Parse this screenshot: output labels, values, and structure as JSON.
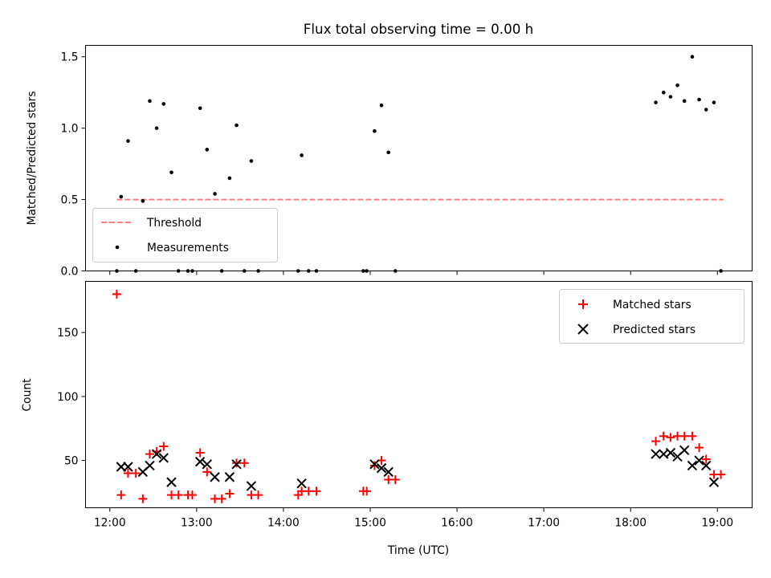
{
  "chart_data": [
    {
      "type": "scatter",
      "title": "Flux total observing time = 0.00 h",
      "xlabel": "",
      "ylabel": "Matched/Predicted stars",
      "xlim": [
        11.72,
        19.4
      ],
      "ylim": [
        0,
        1.58
      ],
      "yticks": [
        0,
        0.5,
        1.0,
        1.5
      ],
      "ytick_labels": [
        "0.0",
        "0.5",
        "1.0",
        "1.5"
      ],
      "grid": false,
      "legend_position": "lower-left",
      "series": [
        {
          "name": "Threshold",
          "kind": "line",
          "color": "#ff7f7f",
          "style": "dashed",
          "x": [
            12.08,
            19.07
          ],
          "y": [
            0.5,
            0.5
          ]
        },
        {
          "name": "Measurements",
          "kind": "scatter",
          "color": "#000000",
          "marker": "dot",
          "x": [
            12.08,
            12.13,
            12.21,
            12.3,
            12.38,
            12.46,
            12.54,
            12.62,
            12.71,
            12.79,
            12.9,
            12.95,
            13.04,
            13.12,
            13.21,
            13.29,
            13.38,
            13.46,
            13.55,
            13.63,
            13.71,
            14.17,
            14.21,
            14.29,
            14.38,
            14.92,
            14.96,
            15.05,
            15.13,
            15.21,
            15.29,
            18.29,
            18.38,
            18.46,
            18.54,
            18.62,
            18.71,
            18.79,
            18.87,
            18.96,
            19.04
          ],
          "y": [
            0.0,
            0.52,
            0.91,
            0.0,
            0.49,
            1.19,
            1.0,
            1.17,
            0.69,
            0.0,
            0.0,
            0.0,
            1.14,
            0.85,
            0.54,
            0.0,
            0.65,
            1.02,
            0.0,
            0.77,
            0.0,
            0.0,
            0.81,
            0.0,
            0.0,
            0.0,
            0.0,
            0.98,
            1.16,
            0.83,
            0.0,
            1.18,
            1.25,
            1.22,
            1.3,
            1.19,
            1.5,
            1.2,
            1.13,
            1.18,
            0.0
          ]
        }
      ]
    },
    {
      "type": "scatter",
      "title": "",
      "xlabel": "Time (UTC)",
      "ylabel": "Count",
      "xlim": [
        11.72,
        19.4
      ],
      "ylim": [
        13,
        190
      ],
      "xticks": [
        12,
        13,
        14,
        15,
        16,
        17,
        18,
        19
      ],
      "xtick_labels": [
        "12:00",
        "13:00",
        "14:00",
        "15:00",
        "16:00",
        "17:00",
        "18:00",
        "19:00"
      ],
      "yticks": [
        50,
        100,
        150
      ],
      "ytick_labels": [
        "50",
        "100",
        "150"
      ],
      "grid": false,
      "legend_position": "top-right",
      "series": [
        {
          "name": "Matched stars",
          "kind": "scatter",
          "color": "#ff0000",
          "marker": "plus",
          "x": [
            12.08,
            12.13,
            12.21,
            12.3,
            12.38,
            12.46,
            12.54,
            12.62,
            12.71,
            12.79,
            12.9,
            12.95,
            13.04,
            13.12,
            13.21,
            13.29,
            13.38,
            13.46,
            13.55,
            13.63,
            13.71,
            14.17,
            14.21,
            14.29,
            14.38,
            14.92,
            14.96,
            15.05,
            15.13,
            15.21,
            15.29,
            18.29,
            18.38,
            18.46,
            18.54,
            18.62,
            18.71,
            18.79,
            18.87,
            18.96,
            19.04
          ],
          "y": [
            180,
            23,
            40,
            40,
            20,
            55,
            57,
            61,
            23,
            23,
            23,
            23,
            56,
            41,
            20,
            20,
            24,
            48,
            48,
            23,
            23,
            23,
            26,
            26,
            26,
            26,
            26,
            46,
            50,
            35,
            35,
            65,
            69,
            68,
            69,
            69,
            69,
            60,
            51,
            39,
            39
          ]
        },
        {
          "name": "Predicted stars",
          "kind": "scatter",
          "color": "#000000",
          "marker": "x",
          "x": [
            12.13,
            12.21,
            12.38,
            12.46,
            12.54,
            12.62,
            12.71,
            13.04,
            13.12,
            13.21,
            13.38,
            13.46,
            13.63,
            14.21,
            15.05,
            15.13,
            15.21,
            18.29,
            18.38,
            18.46,
            18.54,
            18.62,
            18.71,
            18.79,
            18.87,
            18.96
          ],
          "y": [
            45,
            45,
            41,
            46,
            55,
            52,
            33,
            49,
            47,
            37,
            37,
            47,
            30,
            32,
            47,
            44,
            41,
            55,
            55,
            56,
            53,
            58,
            46,
            50,
            46,
            33
          ]
        }
      ]
    }
  ]
}
